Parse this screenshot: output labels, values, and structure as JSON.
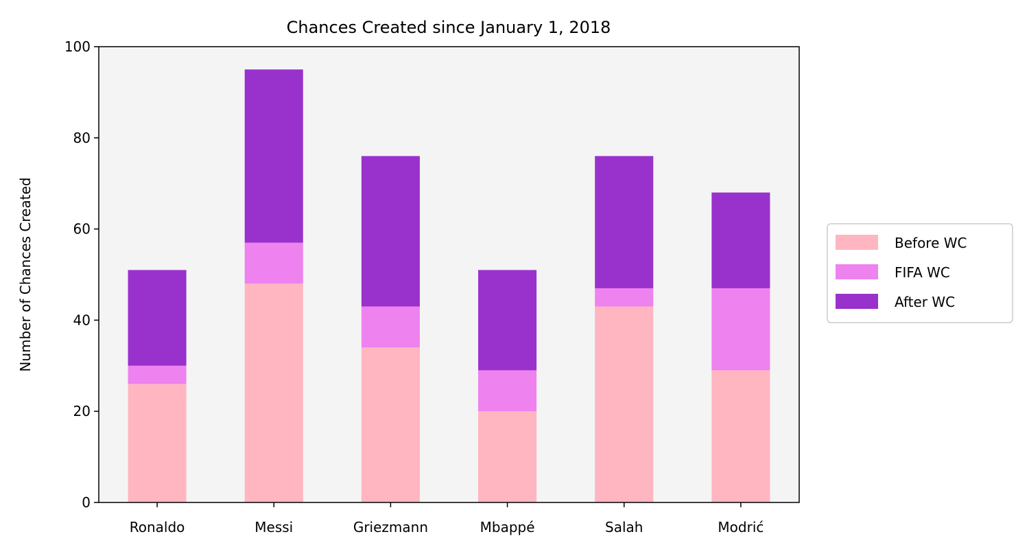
{
  "chart_data": {
    "type": "bar",
    "stacked": true,
    "title": "Chances Created since January 1, 2018",
    "xlabel": "",
    "ylabel": "Number of Chances Created",
    "ylim": [
      0,
      100
    ],
    "yticks": [
      0,
      20,
      40,
      60,
      80,
      100
    ],
    "grid": false,
    "legend_position": "center-right outside",
    "categories": [
      "Ronaldo",
      "Messi",
      "Griezmann",
      "Mbappé",
      "Salah",
      "Modrić"
    ],
    "series": [
      {
        "name": "Before WC",
        "color": "#ffb6c1",
        "values": [
          26,
          48,
          34,
          20,
          43,
          29
        ]
      },
      {
        "name": "FIFA WC",
        "color": "#ee82ee",
        "values": [
          4,
          9,
          9,
          9,
          4,
          18
        ]
      },
      {
        "name": "After WC",
        "color": "#9932cc",
        "values": [
          21,
          38,
          33,
          22,
          29,
          21
        ]
      }
    ],
    "colors": {
      "plot_background": "#f4f4f4",
      "axis": "#000000"
    }
  }
}
